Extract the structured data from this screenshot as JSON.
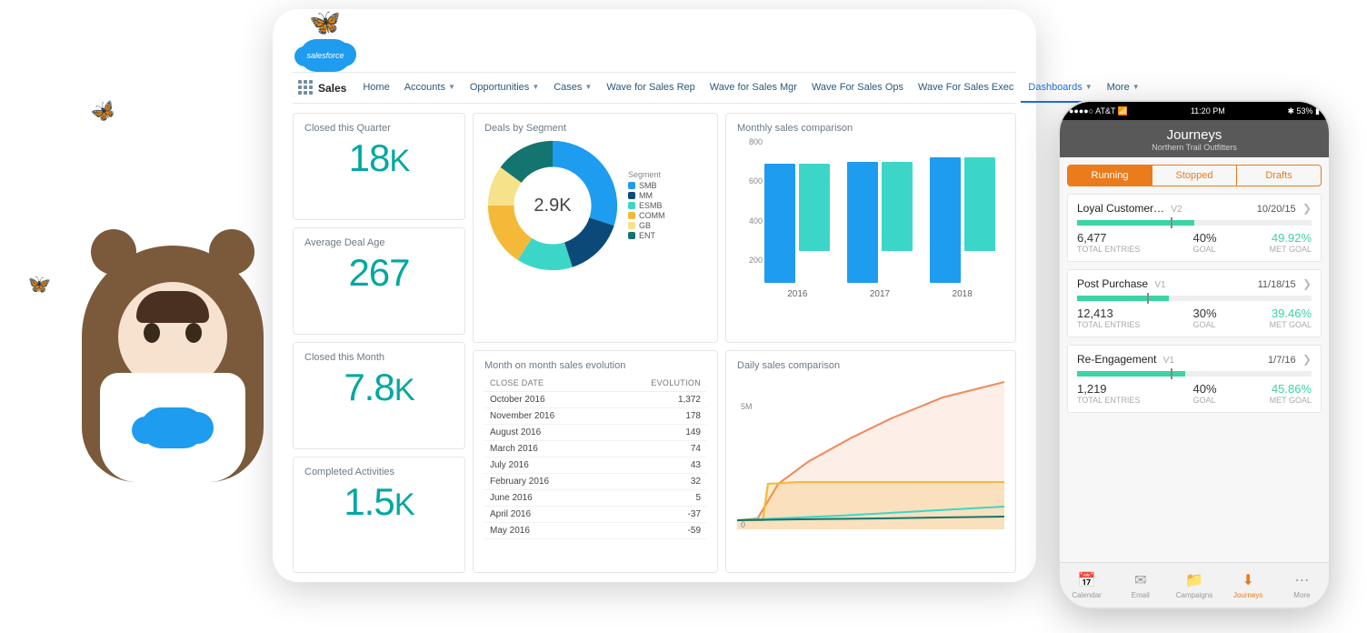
{
  "brand": "salesforce",
  "workspace": "Sales",
  "nav": [
    {
      "label": "Home",
      "dropdown": false
    },
    {
      "label": "Accounts",
      "dropdown": true
    },
    {
      "label": "Opportunities",
      "dropdown": true
    },
    {
      "label": "Cases",
      "dropdown": true
    },
    {
      "label": "Wave for Sales Rep",
      "dropdown": false
    },
    {
      "label": "Wave for Sales Mgr",
      "dropdown": false
    },
    {
      "label": "Wave For Sales Ops",
      "dropdown": false
    },
    {
      "label": "Wave For Sales Exec",
      "dropdown": false
    },
    {
      "label": "Dashboards",
      "dropdown": true,
      "active": true
    },
    {
      "label": "More",
      "dropdown": true
    }
  ],
  "metrics": {
    "closed_quarter": {
      "title": "Closed this Quarter",
      "value": "18",
      "suffix": "K"
    },
    "avg_deal_age": {
      "title": "Average Deal Age",
      "value": "267",
      "suffix": ""
    },
    "closed_month": {
      "title": "Closed this Month",
      "value": "7.8",
      "suffix": "K"
    },
    "completed_activities": {
      "title": "Completed Activities",
      "value": "1.5",
      "suffix": "K"
    }
  },
  "metric_color": "#00a8a0",
  "donut": {
    "title": "Deals by Segment",
    "center": "2.9K",
    "legend_title": "Segment",
    "segments": [
      {
        "label": "SMB",
        "color": "#1e9cef",
        "value": 30
      },
      {
        "label": "MM",
        "color": "#0b4a78",
        "value": 15
      },
      {
        "label": "ESMB",
        "color": "#3cd6c9",
        "value": 14
      },
      {
        "label": "COMM",
        "color": "#f5b93a",
        "value": 16
      },
      {
        "label": "GB",
        "color": "#f5e28a",
        "value": 10
      },
      {
        "label": "ENT",
        "color": "#14746f",
        "value": 15
      }
    ]
  },
  "bars": {
    "title": "Monthly sales comparison",
    "ymax": 800,
    "yticks": [
      800,
      600,
      400,
      200
    ],
    "colors": [
      "#1e9cef",
      "#3cd6c9"
    ],
    "groups": [
      {
        "label": "2016",
        "values": [
          750,
          550
        ]
      },
      {
        "label": "2017",
        "values": [
          760,
          560
        ]
      },
      {
        "label": "2018",
        "values": [
          790,
          590
        ]
      }
    ]
  },
  "table": {
    "title": "Month on month sales evolution",
    "columns": [
      "CLOSE DATE",
      "EVOLUTION"
    ],
    "rows": [
      [
        "October 2016",
        "1,372"
      ],
      [
        "November 2016",
        "178"
      ],
      [
        "August 2016",
        "149"
      ],
      [
        "March 2016",
        "74"
      ],
      [
        "July 2016",
        "43"
      ],
      [
        "February 2016",
        "32"
      ],
      [
        "June 2016",
        "5"
      ],
      [
        "April 2016",
        "-37"
      ],
      [
        "May 2016",
        "-59"
      ]
    ]
  },
  "lines": {
    "title": "Daily sales comparison",
    "ylabels": [
      {
        "v": "5M",
        "pos": 30
      },
      {
        "v": "0",
        "pos": 160
      }
    ],
    "series": [
      {
        "color": "#f08a5d",
        "fill": "rgba(240,138,93,0.15)",
        "points": [
          [
            0,
            160
          ],
          [
            20,
            158
          ],
          [
            40,
            120
          ],
          [
            70,
            95
          ],
          [
            110,
            70
          ],
          [
            150,
            48
          ],
          [
            200,
            25
          ],
          [
            260,
            8
          ]
        ]
      },
      {
        "color": "#f5b93a",
        "fill": "rgba(245,185,58,0.25)",
        "points": [
          [
            0,
            160
          ],
          [
            25,
            160
          ],
          [
            30,
            120
          ],
          [
            60,
            118
          ],
          [
            120,
            118
          ],
          [
            200,
            118
          ],
          [
            260,
            118
          ]
        ]
      },
      {
        "color": "#3cd6c9",
        "fill": "none",
        "points": [
          [
            0,
            160
          ],
          [
            40,
            158
          ],
          [
            100,
            155
          ],
          [
            180,
            150
          ],
          [
            260,
            145
          ]
        ]
      },
      {
        "color": "#14746f",
        "fill": "none",
        "points": [
          [
            0,
            160
          ],
          [
            60,
            159
          ],
          [
            140,
            158
          ],
          [
            260,
            156
          ]
        ]
      }
    ]
  },
  "phone": {
    "status": {
      "carrier": "●●●●○ AT&T",
      "wifi": "📶",
      "time": "11:20 PM",
      "battery": "53%",
      "bt": "✱"
    },
    "header": {
      "title": "Journeys",
      "subtitle": "Northern Trail Outfitters"
    },
    "tabs": [
      "Running",
      "Stopped",
      "Drafts"
    ],
    "active_tab": 0,
    "journeys": [
      {
        "name": "Loyal Customer…",
        "ver": "V2",
        "date": "10/20/15",
        "progress": 50,
        "goal_mark": 40,
        "entries": "6,477",
        "goal": "40%",
        "met": "49.92%"
      },
      {
        "name": "Post Purchase",
        "ver": "V1",
        "date": "11/18/15",
        "progress": 39,
        "goal_mark": 30,
        "entries": "12,413",
        "goal": "30%",
        "met": "39.46%"
      },
      {
        "name": "Re-Engagement",
        "ver": "V1",
        "date": "1/7/16",
        "progress": 46,
        "goal_mark": 40,
        "entries": "1,219",
        "goal": "40%",
        "met": "45.86%"
      }
    ],
    "labels": {
      "entries": "TOTAL ENTRIES",
      "goal": "GOAL",
      "met": "MET GOAL"
    },
    "bottom": [
      {
        "icon": "📅",
        "label": "Calendar"
      },
      {
        "icon": "✉",
        "label": "Email"
      },
      {
        "icon": "📁",
        "label": "Campaigns"
      },
      {
        "icon": "⬇",
        "label": "Journeys",
        "active": true
      },
      {
        "icon": "⋯",
        "label": "More"
      }
    ]
  }
}
